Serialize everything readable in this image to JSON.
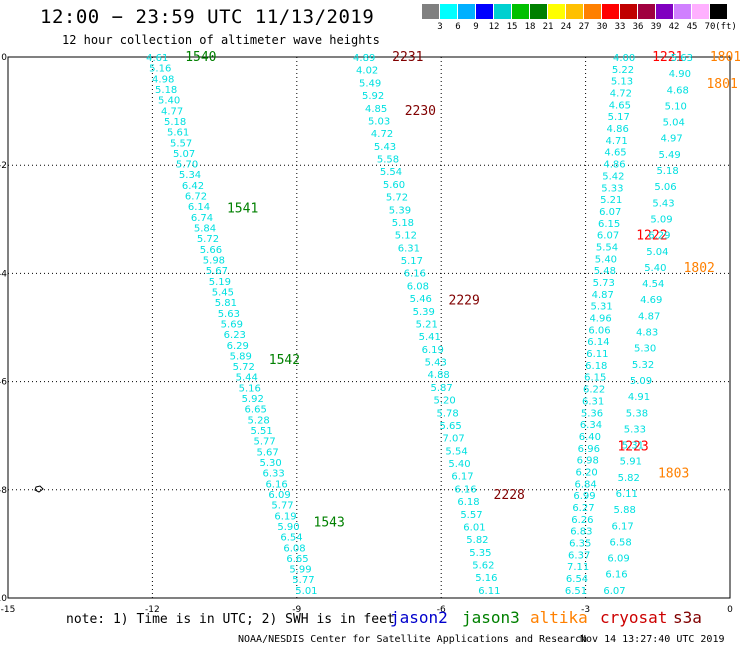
{
  "header": {
    "title": "12:00 − 23:59 UTC 11/13/2019",
    "subtitle": "12 hour collection of altimeter wave heights"
  },
  "legend": {
    "unit": "(ft)",
    "colors": [
      "#808080",
      "#00ffff",
      "#00b0ff",
      "#0000ff",
      "#00d0d0",
      "#00c000",
      "#008000",
      "#ffff00",
      "#ffc000",
      "#ff8000",
      "#ff0000",
      "#c00000",
      "#a00040",
      "#8000c0",
      "#d080ff",
      "#ffb0ff",
      "#000000"
    ],
    "labels": [
      "3",
      "6",
      "9",
      "12",
      "15",
      "18",
      "21",
      "24",
      "27",
      "30",
      "33",
      "36",
      "39",
      "42",
      "45",
      "70"
    ]
  },
  "map": {
    "x_ticks": [
      "-15",
      "-12",
      "-9",
      "-6",
      "-3",
      "0"
    ],
    "y_ticks": [
      "0",
      "-2",
      "-4",
      "-6",
      "-8",
      "-10"
    ],
    "xlim": [
      -15,
      0
    ],
    "ylim": [
      -10,
      0
    ]
  },
  "tracks": [
    {
      "id": "1540",
      "color": "#008000",
      "lon_top": -11.9,
      "lon_bot": -8.8,
      "values": [
        "4.61",
        "5.16",
        "4.98",
        "5.18",
        "5.40",
        "4.77",
        "5.18",
        "5.61",
        "5.57",
        "5.07",
        "5.70",
        "5.34",
        "6.42",
        "6.72",
        "6.14",
        "6.74",
        "5.84",
        "5.72",
        "5.66",
        "5.98",
        "5.67",
        "5.19",
        "5.45",
        "5.81",
        "5.63",
        "5.69",
        "6.23",
        "6.29",
        "5.89",
        "5.72",
        "5.44",
        "5.16",
        "5.92",
        "6.65",
        "5.28",
        "5.51",
        "5.77",
        "5.67",
        "5.30",
        "6.33",
        "6.16",
        "6.09",
        "5.77",
        "6.19",
        "5.90",
        "6.54",
        "6.08",
        "6.65",
        "5.99",
        "5.77",
        "5.01"
      ],
      "labels": [
        {
          "text": "1540",
          "lat": 0.0
        },
        {
          "text": "1541",
          "lat": -2.8
        },
        {
          "text": "1542",
          "lat": -5.6
        },
        {
          "text": "1543",
          "lat": -8.6
        }
      ]
    },
    {
      "id": "2231",
      "color": "#800000",
      "lon_top": -7.6,
      "lon_bot": -5.0,
      "values": [
        "4.89",
        "4.02",
        "5.49",
        "5.92",
        "4.85",
        "5.03",
        "4.72",
        "5.43",
        "5.58",
        "5.54",
        "5.60",
        "5.72",
        "5.39",
        "5.18",
        "5.12",
        "6.31",
        "5.17",
        "6.16",
        "6.08",
        "5.46",
        "5.39",
        "5.21",
        "5.41",
        "6.19",
        "5.43",
        "4.88",
        "5.87",
        "5.20",
        "5.78",
        "5.65",
        "7.07",
        "5.54",
        "5.40",
        "6.17",
        "6.16",
        "6.18",
        "5.57",
        "6.01",
        "5.82",
        "5.35",
        "5.62",
        "5.16",
        "6.11"
      ],
      "labels": [
        {
          "text": "2231",
          "lat": 0.0
        },
        {
          "text": "2230",
          "lat": -1.0
        },
        {
          "text": "2229",
          "lat": -4.5
        },
        {
          "text": "2228",
          "lat": -8.1
        }
      ]
    },
    {
      "id": "1221",
      "color": "#ff0000",
      "lon_top": -2.2,
      "lon_bot": -3.2,
      "values": [
        "4.00",
        "5.22",
        "5.13",
        "4.72",
        "4.65",
        "5.17",
        "4.86",
        "4.71",
        "4.65",
        "4.86",
        "5.42",
        "5.33",
        "5.21",
        "6.07",
        "6.15",
        "6.07",
        "5.54",
        "5.40",
        "5.48",
        "5.73",
        "4.87",
        "5.31",
        "4.96",
        "6.06",
        "6.14",
        "6.11",
        "6.18",
        "6.15",
        "6.22",
        "6.31",
        "5.36",
        "6.34",
        "6.40",
        "6.96",
        "6.98",
        "6.20",
        "6.84",
        "6.99",
        "6.27",
        "6.26",
        "6.83",
        "6.35",
        "6.37",
        "7.11",
        "6.54",
        "6.51"
      ],
      "labels": [
        {
          "text": "1221",
          "lat": 0.0
        },
        {
          "text": "1222",
          "lat": -3.3
        },
        {
          "text": "1223",
          "lat": -7.2
        }
      ]
    },
    {
      "id": "1801",
      "color": "#ff8000",
      "lon_top": -1.0,
      "lon_bot": -2.4,
      "values": [
        "5.63",
        "4.90",
        "4.68",
        "5.10",
        "5.04",
        "4.97",
        "5.49",
        "5.18",
        "5.06",
        "5.43",
        "5.09",
        "6.29",
        "5.04",
        "5.40",
        "4.54",
        "4.69",
        "4.87",
        "4.83",
        "5.30",
        "5.32",
        "5.09",
        "4.91",
        "5.38",
        "5.33",
        "5.31",
        "5.91",
        "5.82",
        "6.11",
        "5.88",
        "6.17",
        "6.58",
        "6.09",
        "6.16",
        "6.07"
      ],
      "labels": [
        {
          "text": "1801",
          "lat": 0.0
        },
        {
          "text": "1801",
          "lat": -0.5
        },
        {
          "text": "1802",
          "lat": -3.9
        },
        {
          "text": "1803",
          "lat": -7.7
        }
      ]
    }
  ],
  "footer": {
    "note": "note: 1) Time is in UTC; 2) SWH is in feet",
    "satellites": [
      {
        "name": "jason2",
        "color": "#0000cc"
      },
      {
        "name": "jason3",
        "color": "#008000"
      },
      {
        "name": "altika",
        "color": "#ff8000"
      },
      {
        "name": "cryosat",
        "color": "#cc0000"
      },
      {
        "name": "s3a",
        "color": "#800000"
      }
    ],
    "credit": "NOAA/NESDIS Center for Satellite Applications and Research",
    "timestamp": "Nov 14 13:27:40 UTC 2019"
  }
}
